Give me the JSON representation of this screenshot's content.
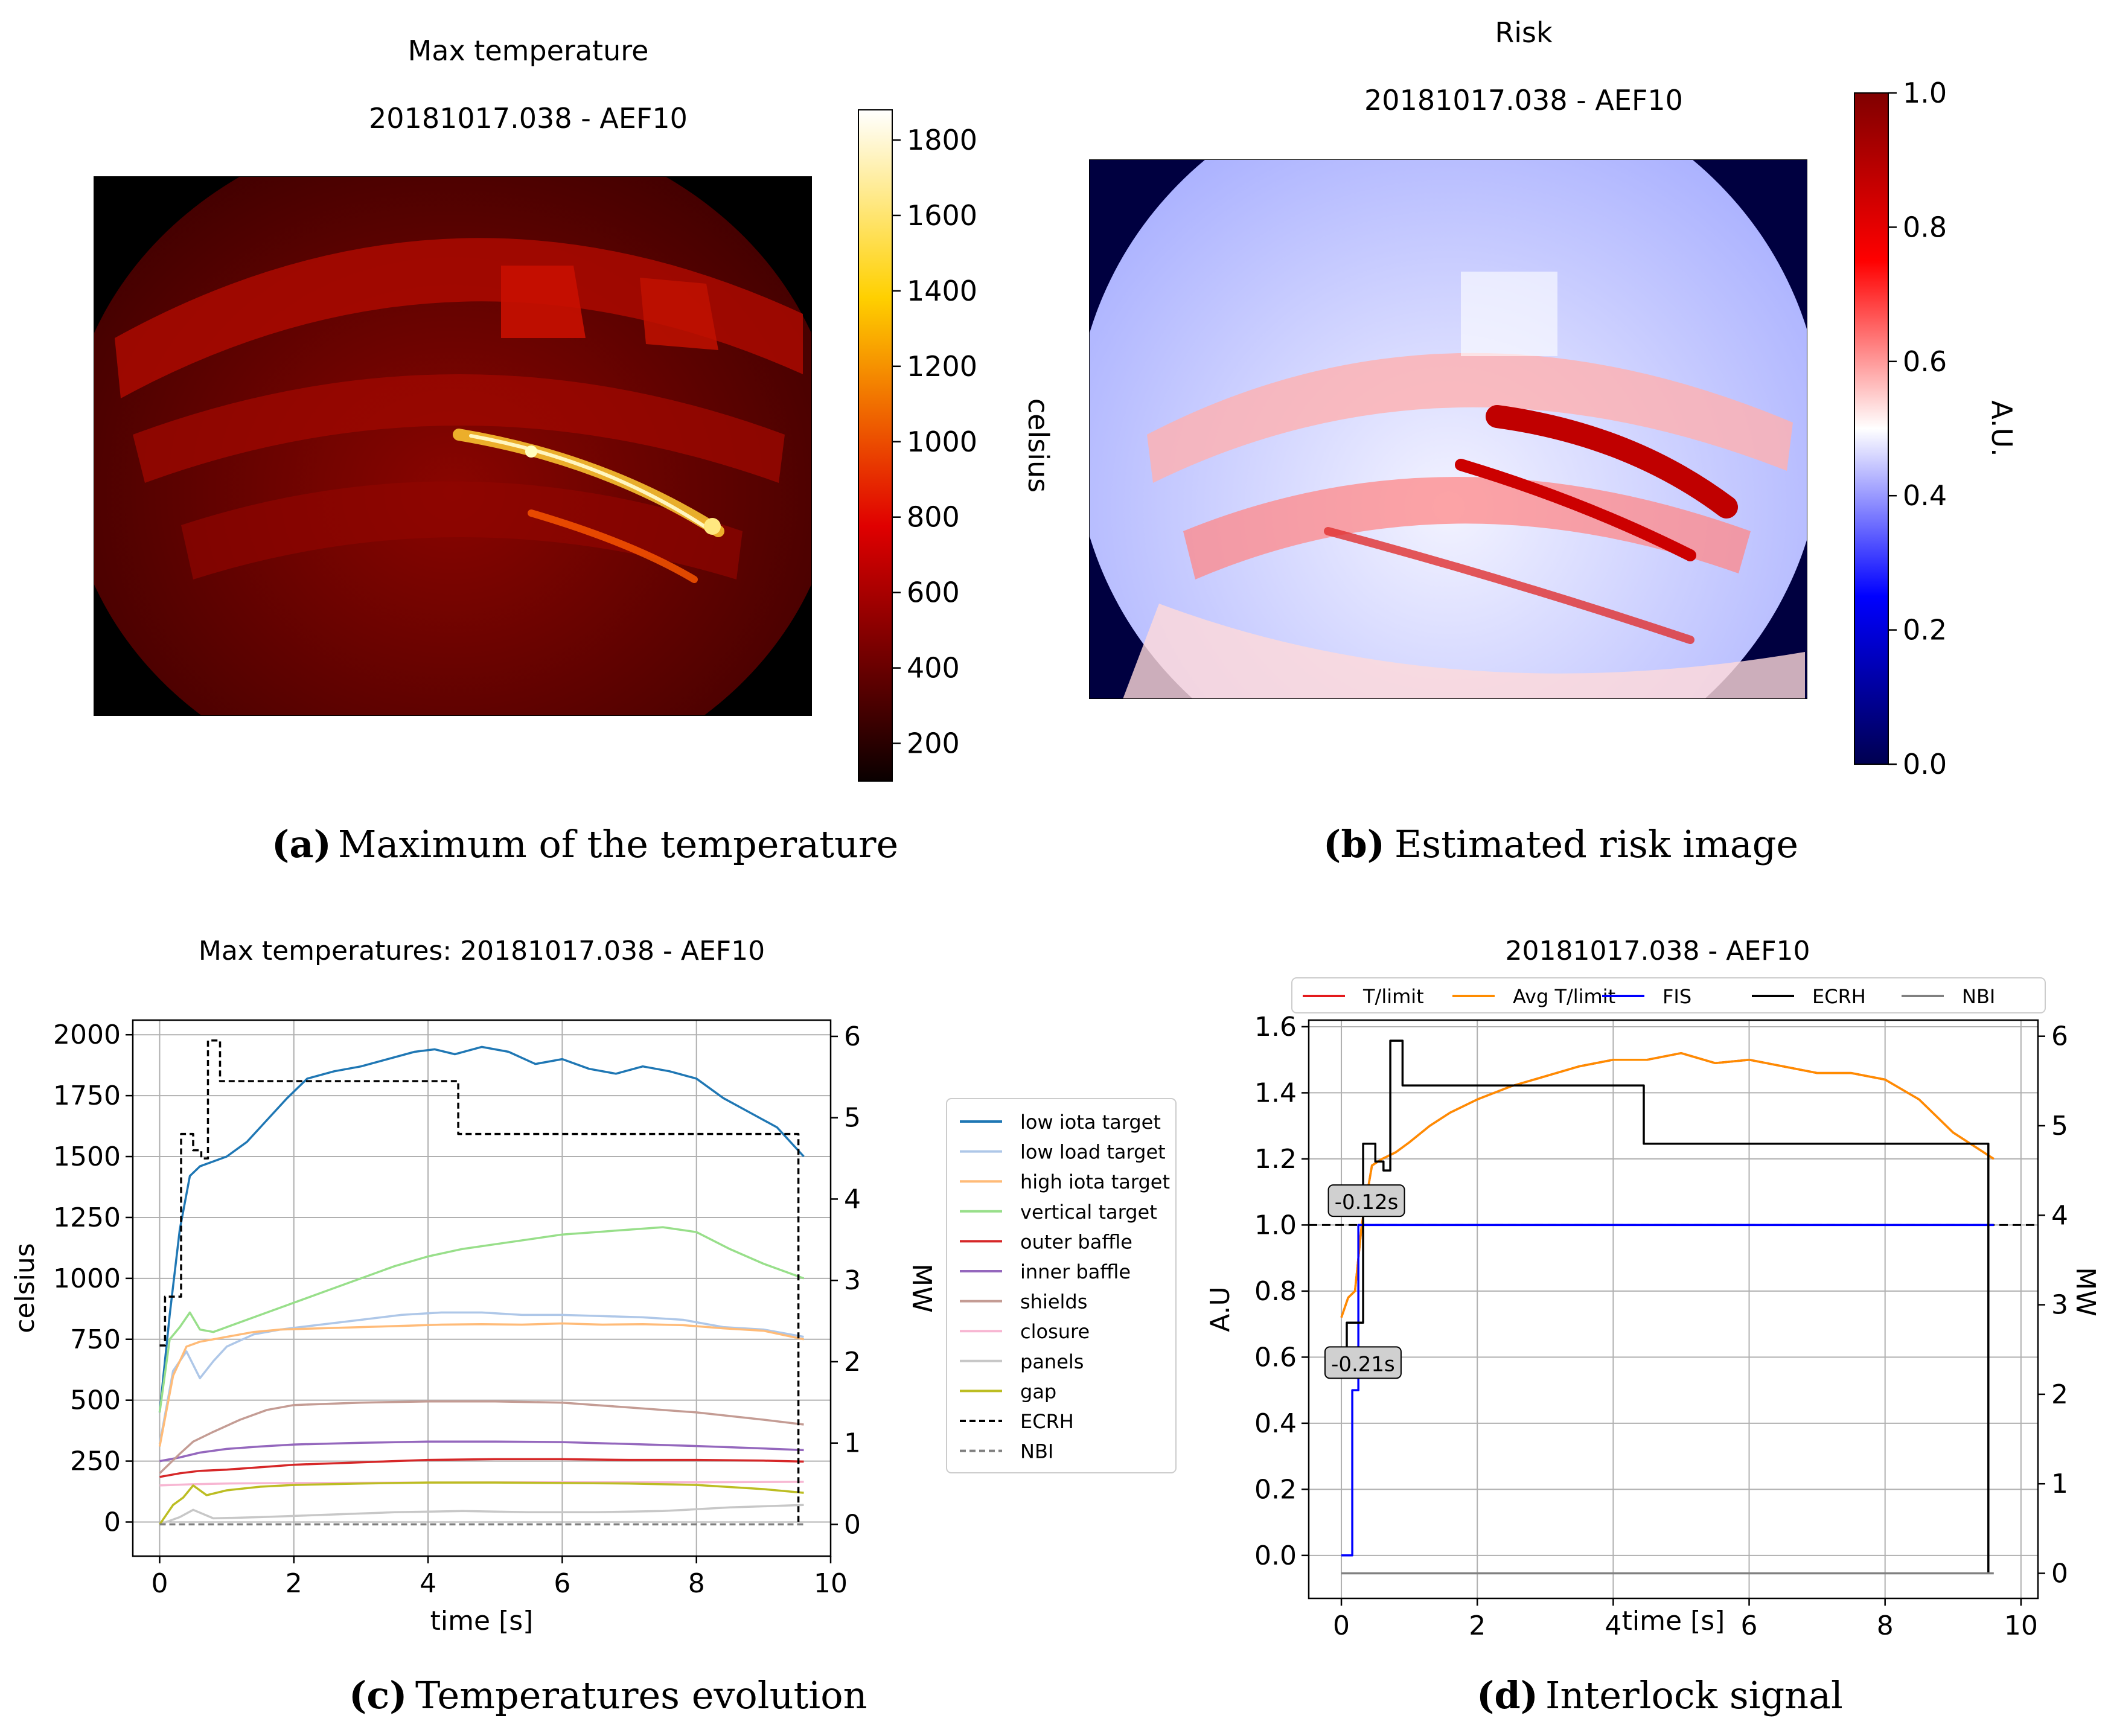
{
  "panels": {
    "a": {
      "title": "Max temperature",
      "subtitle": "20181017.038 - AEF10",
      "caption_letter": "(a)",
      "caption_text": "Maximum of the temperature",
      "colorbar_label": "celsius",
      "colorbar_ticks": [
        "200",
        "400",
        "600",
        "800",
        "1000",
        "1200",
        "1400",
        "1600",
        "1800"
      ]
    },
    "b": {
      "title": "Risk",
      "subtitle": "20181017.038 - AEF10",
      "caption_letter": "(b)",
      "caption_text": "Estimated risk image",
      "colorbar_label": "A.U.",
      "colorbar_ticks": [
        "0.0",
        "0.2",
        "0.4",
        "0.6",
        "0.8",
        "1.0"
      ]
    },
    "c": {
      "caption_letter": "(c)",
      "caption_text": "Temperatures evolution"
    },
    "d": {
      "caption_letter": "(d)",
      "caption_text": "Interlock signal"
    }
  },
  "chart_data": [
    {
      "id": "c",
      "type": "line",
      "title": "Max temperatures: 20181017.038 - AEF10",
      "xlabel": "time [s]",
      "ylabel": "celsius",
      "y2label": "MW",
      "xlim": [
        -0.4,
        10
      ],
      "ylim": [
        -140,
        2060
      ],
      "y2lim": [
        -0.39,
        6.2
      ],
      "xticks": [
        "0",
        "2",
        "4",
        "6",
        "8",
        "10"
      ],
      "yticks": [
        "0",
        "250",
        "500",
        "750",
        "1000",
        "1250",
        "1500",
        "1750",
        "2000"
      ],
      "y2ticks": [
        "0",
        "1",
        "2",
        "3",
        "4",
        "5",
        "6"
      ],
      "grid": true,
      "legend_position": "outside-right",
      "series": [
        {
          "name": "low iota target",
          "color": "#1f77b4",
          "dash": "",
          "axis": "left",
          "x": [
            0,
            0.15,
            0.3,
            0.45,
            0.6,
            0.8,
            1.0,
            1.3,
            1.6,
            1.9,
            2.2,
            2.6,
            3.0,
            3.4,
            3.8,
            4.1,
            4.4,
            4.8,
            5.2,
            5.6,
            6.0,
            6.4,
            6.8,
            7.2,
            7.6,
            8.0,
            8.4,
            8.8,
            9.2,
            9.6
          ],
          "y": [
            450,
            850,
            1200,
            1420,
            1460,
            1480,
            1500,
            1560,
            1650,
            1740,
            1820,
            1850,
            1870,
            1900,
            1930,
            1940,
            1920,
            1950,
            1930,
            1880,
            1900,
            1860,
            1840,
            1870,
            1850,
            1820,
            1740,
            1680,
            1620,
            1500
          ]
        },
        {
          "name": "low load target",
          "color": "#aec7e8",
          "dash": "",
          "axis": "left",
          "x": [
            0,
            0.2,
            0.4,
            0.6,
            0.8,
            1.0,
            1.4,
            1.8,
            2.4,
            3.0,
            3.6,
            4.2,
            4.8,
            5.4,
            6.0,
            6.6,
            7.2,
            7.8,
            8.4,
            9.0,
            9.6
          ],
          "y": [
            320,
            620,
            700,
            590,
            660,
            720,
            770,
            790,
            810,
            830,
            850,
            860,
            860,
            850,
            850,
            845,
            840,
            830,
            800,
            790,
            760
          ]
        },
        {
          "name": "high iota target",
          "color": "#ffbb78",
          "dash": "",
          "axis": "left",
          "x": [
            0,
            0.2,
            0.4,
            0.6,
            0.8,
            1.0,
            1.4,
            1.8,
            2.4,
            3.0,
            3.6,
            4.2,
            4.8,
            5.4,
            6.0,
            6.6,
            7.2,
            7.8,
            8.4,
            9.0,
            9.6
          ],
          "y": [
            310,
            600,
            720,
            740,
            750,
            760,
            780,
            790,
            795,
            800,
            805,
            810,
            812,
            810,
            815,
            810,
            812,
            808,
            795,
            785,
            750
          ]
        },
        {
          "name": "vertical target",
          "color": "#98df8a",
          "dash": "",
          "axis": "left",
          "x": [
            0,
            0.15,
            0.3,
            0.45,
            0.6,
            0.8,
            1.0,
            1.5,
            2.0,
            2.5,
            3.0,
            3.5,
            4.0,
            4.5,
            5.0,
            5.5,
            6.0,
            6.5,
            7.0,
            7.5,
            8.0,
            8.5,
            9.0,
            9.6
          ],
          "y": [
            450,
            750,
            800,
            860,
            790,
            780,
            800,
            850,
            900,
            950,
            1000,
            1050,
            1090,
            1120,
            1140,
            1160,
            1180,
            1190,
            1200,
            1210,
            1190,
            1120,
            1060,
            1000
          ]
        },
        {
          "name": "outer baffle",
          "color": "#d62728",
          "dash": "",
          "axis": "left",
          "x": [
            0,
            0.3,
            0.6,
            1.0,
            1.5,
            2.0,
            3.0,
            4.0,
            5.0,
            6.0,
            7.0,
            8.0,
            9.0,
            9.6
          ],
          "y": [
            185,
            200,
            210,
            215,
            225,
            235,
            245,
            255,
            258,
            258,
            255,
            255,
            252,
            248
          ]
        },
        {
          "name": "inner baffle",
          "color": "#9467bd",
          "dash": "",
          "axis": "left",
          "x": [
            0,
            0.3,
            0.6,
            1.0,
            1.5,
            2.0,
            3.0,
            4.0,
            5.0,
            6.0,
            7.0,
            8.0,
            9.0,
            9.6
          ],
          "y": [
            250,
            265,
            285,
            300,
            310,
            318,
            325,
            330,
            330,
            328,
            320,
            312,
            302,
            295
          ]
        },
        {
          "name": "shields",
          "color": "#c49c94",
          "dash": "",
          "axis": "left",
          "x": [
            0,
            0.3,
            0.5,
            0.8,
            1.2,
            1.6,
            2.0,
            3.0,
            4.0,
            5.0,
            6.0,
            7.0,
            8.0,
            9.0,
            9.6
          ],
          "y": [
            200,
            280,
            330,
            370,
            420,
            460,
            480,
            490,
            495,
            495,
            490,
            470,
            450,
            420,
            400
          ]
        },
        {
          "name": "closure",
          "color": "#f7b6d2",
          "dash": "",
          "axis": "left",
          "x": [
            0,
            0.5,
            1.0,
            2.0,
            4.0,
            6.0,
            8.0,
            9.6
          ],
          "y": [
            150,
            155,
            158,
            160,
            162,
            163,
            163,
            165
          ]
        },
        {
          "name": "panels",
          "color": "#c7c7c7",
          "dash": "",
          "axis": "left",
          "x": [
            0,
            0.3,
            0.5,
            0.8,
            1.5,
            2.5,
            3.5,
            4.5,
            5.5,
            6.5,
            7.5,
            8.5,
            9.6
          ],
          "y": [
            -10,
            20,
            50,
            15,
            20,
            30,
            40,
            45,
            40,
            40,
            45,
            60,
            70
          ]
        },
        {
          "name": "gap",
          "color": "#bcbd22",
          "dash": "",
          "axis": "left",
          "x": [
            0,
            0.2,
            0.35,
            0.5,
            0.7,
            1.0,
            1.5,
            2.0,
            3.0,
            4.0,
            5.0,
            6.0,
            7.0,
            8.0,
            9.0,
            9.6
          ],
          "y": [
            -10,
            70,
            100,
            150,
            110,
            130,
            145,
            152,
            158,
            162,
            162,
            160,
            158,
            152,
            135,
            120
          ]
        },
        {
          "name": "ECRH",
          "color": "#000000",
          "dash": "10 6",
          "axis": "right",
          "x": [
            0,
            0.08,
            0.25,
            0.32,
            0.5,
            0.62,
            0.72,
            0.9,
            1.2,
            2.0,
            3.0,
            4.0,
            4.42,
            4.45,
            5.0,
            6.0,
            7.0,
            8.0,
            9.0,
            9.5,
            9.52
          ],
          "y": [
            2.2,
            2.8,
            2.8,
            4.8,
            4.6,
            4.5,
            5.95,
            5.45,
            5.45,
            5.45,
            5.45,
            5.45,
            5.45,
            4.8,
            4.8,
            4.8,
            4.8,
            4.8,
            4.8,
            4.8,
            0
          ]
        },
        {
          "name": "NBI",
          "color": "#7f7f7f",
          "dash": "10 6",
          "axis": "right",
          "x": [
            0,
            9.6
          ],
          "y": [
            0,
            0
          ]
        }
      ]
    },
    {
      "id": "d",
      "type": "line",
      "title": "20181017.038 - AEF10",
      "xlabel": "time [s]",
      "ylabel": "A.U",
      "y2label": "MW",
      "xlim": [
        -0.48,
        10.25
      ],
      "ylim": [
        -0.13,
        1.62
      ],
      "y2lim": [
        -0.28,
        6.18
      ],
      "xticks": [
        "0",
        "2",
        "4",
        "6",
        "8",
        "10"
      ],
      "yticks": [
        "0.0",
        "0.2",
        "0.4",
        "0.6",
        "0.8",
        "1.0",
        "1.2",
        "1.4",
        "1.6"
      ],
      "y2ticks": [
        "0",
        "1",
        "2",
        "3",
        "4",
        "5",
        "6"
      ],
      "grid": true,
      "legend_position": "top",
      "threshold": 1.0,
      "annotations": [
        {
          "text": "-0.12s",
          "x": 0.2,
          "y": 1.07
        },
        {
          "text": "-0.21s",
          "x": 0.15,
          "y": 0.58
        }
      ],
      "series": [
        {
          "name": "T/limit",
          "color": "#e41a1c",
          "dash": "",
          "axis": "left",
          "x": [
            0,
            0.1,
            0.2,
            0.3,
            0.45,
            0.6,
            0.8,
            1.0,
            1.3,
            1.6,
            2.0,
            2.5,
            3.0,
            3.5,
            4.0,
            4.5,
            5.0,
            5.5,
            6.0,
            6.5,
            7.0,
            7.5,
            8.0,
            8.5,
            9.0,
            9.6
          ],
          "y": [
            0.72,
            0.78,
            0.8,
            1.0,
            1.18,
            1.2,
            1.22,
            1.25,
            1.3,
            1.34,
            1.38,
            1.42,
            1.45,
            1.48,
            1.5,
            1.5,
            1.52,
            1.49,
            1.5,
            1.48,
            1.46,
            1.46,
            1.44,
            1.38,
            1.28,
            1.2
          ]
        },
        {
          "name": "Avg T/limit",
          "color": "#ff8c00",
          "dash": "",
          "axis": "left",
          "x": [
            0,
            0.1,
            0.2,
            0.3,
            0.45,
            0.6,
            0.8,
            1.0,
            1.3,
            1.6,
            2.0,
            2.5,
            3.0,
            3.5,
            4.0,
            4.5,
            5.0,
            5.5,
            6.0,
            6.5,
            7.0,
            7.5,
            8.0,
            8.5,
            9.0,
            9.6
          ],
          "y": [
            0.72,
            0.78,
            0.8,
            1.0,
            1.18,
            1.2,
            1.22,
            1.25,
            1.3,
            1.34,
            1.38,
            1.42,
            1.45,
            1.48,
            1.5,
            1.5,
            1.52,
            1.49,
            1.5,
            1.48,
            1.46,
            1.46,
            1.44,
            1.38,
            1.28,
            1.2
          ]
        },
        {
          "name": "FIS",
          "color": "#0000ff",
          "dash": "",
          "axis": "left",
          "x": [
            0,
            0.15,
            0.16,
            0.24,
            0.25,
            9.6
          ],
          "y": [
            0,
            0,
            0.5,
            0.5,
            1.0,
            1.0
          ]
        },
        {
          "name": "ECRH",
          "color": "#000000",
          "dash": "",
          "axis": "right",
          "x": [
            0,
            0.08,
            0.25,
            0.32,
            0.5,
            0.62,
            0.72,
            0.9,
            1.2,
            2.0,
            3.0,
            4.0,
            4.42,
            4.45,
            5.0,
            6.0,
            7.0,
            8.0,
            9.0,
            9.5,
            9.52
          ],
          "y": [
            2.2,
            2.8,
            2.8,
            4.8,
            4.6,
            4.5,
            5.95,
            5.45,
            5.45,
            5.45,
            5.45,
            5.45,
            5.45,
            4.8,
            4.8,
            4.8,
            4.8,
            4.8,
            4.8,
            4.8,
            0
          ]
        },
        {
          "name": "NBI",
          "color": "#808080",
          "dash": "",
          "axis": "right",
          "x": [
            0,
            9.6
          ],
          "y": [
            0,
            0
          ]
        }
      ]
    }
  ]
}
